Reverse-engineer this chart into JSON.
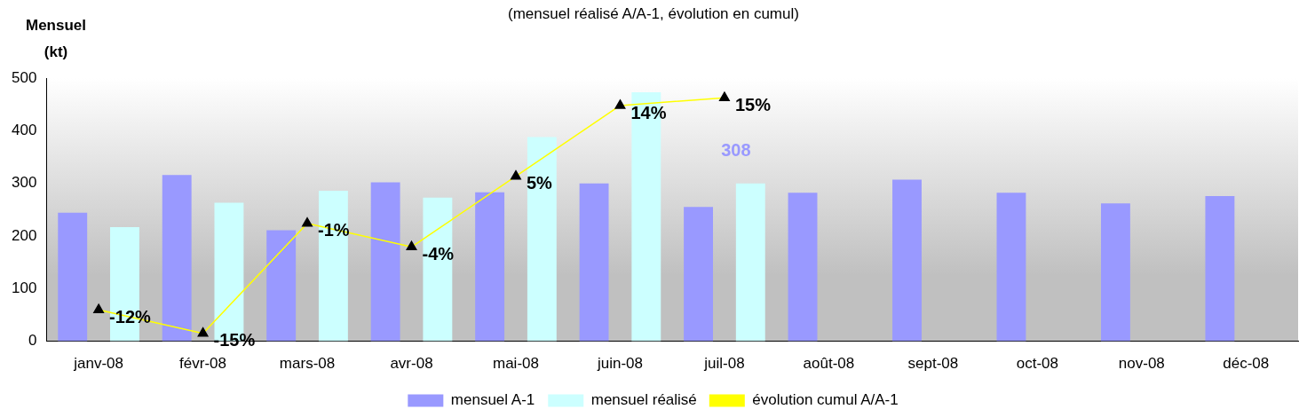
{
  "chart_data": {
    "type": "bar",
    "title": "(mensuel réalisé A/A-1, évolution en cumul)",
    "ylabel": "Mensuel (kt)",
    "categories": [
      "janv-08",
      "févr-08",
      "mars-08",
      "avr-08",
      "mai-08",
      "juin-08",
      "juil-08",
      "août-08",
      "sept-08",
      "oct-08",
      "nov-08",
      "déc-08"
    ],
    "series": [
      {
        "name": "mensuel A-1",
        "color": "#9999ff",
        "values": [
          244,
          316,
          211,
          302,
          283,
          300,
          255,
          282,
          307,
          282,
          262,
          276
        ]
      },
      {
        "name": "mensuel réalisé",
        "color": "#ccffff",
        "values": [
          217,
          263,
          286,
          273,
          388,
          473,
          300,
          null,
          null,
          null,
          null,
          null
        ]
      },
      {
        "name": "évolution cumul A/A-1",
        "type": "line",
        "axis": "y2",
        "color": "#ffff00",
        "marker": "triangle",
        "values": [
          -12,
          -15,
          -1,
          -4,
          5,
          14,
          15,
          null,
          null,
          null,
          null,
          null
        ],
        "value_labels": [
          "-12%",
          "-15%",
          "-1%",
          "-4%",
          "5%",
          "14%",
          "15%",
          null,
          null,
          null,
          null,
          null
        ]
      }
    ],
    "annotations": [
      "308"
    ],
    "ylim": [
      0,
      500
    ],
    "yticks": [
      0,
      100,
      200,
      300,
      400,
      500
    ],
    "y2lim": [
      -16,
      17.5
    ],
    "tick_labels": "xy",
    "grid": false,
    "legend": "bottom"
  }
}
